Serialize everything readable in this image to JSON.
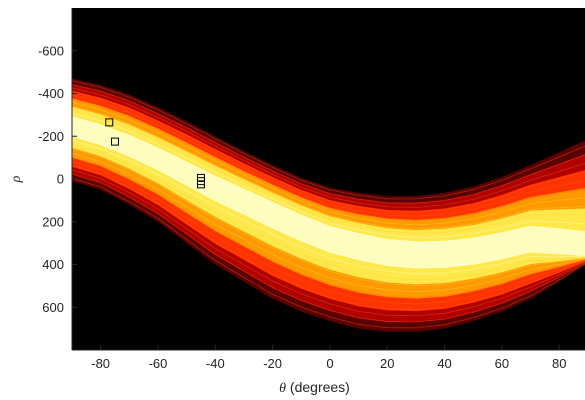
{
  "chart_data": {
    "type": "heatmap",
    "title": "",
    "xlabel_symbol": "θ",
    "xlabel_unit": " (degrees)",
    "ylabel": "ρ",
    "xlim": [
      -90,
      89
    ],
    "ylim": [
      -800,
      800
    ],
    "y_reversed": true,
    "xticks": [
      -80,
      -60,
      -40,
      -20,
      0,
      20,
      40,
      60,
      80
    ],
    "yticks": [
      -600,
      -400,
      -200,
      0,
      200,
      400,
      600
    ],
    "colormap": [
      "#000000",
      "#5a0000",
      "#b00000",
      "#ff3300",
      "#ff9900",
      "#ffe84a",
      "#ffffc8"
    ],
    "background": "#000000",
    "band": {
      "description_points_theta": [
        -90,
        -80,
        -70,
        -60,
        -50,
        -40,
        -30,
        -20,
        -10,
        0,
        10,
        20,
        30,
        40,
        50,
        60,
        70,
        80,
        89
      ],
      "upper_edge_rho": [
        -470,
        -440,
        -395,
        -335,
        -270,
        -200,
        -130,
        -65,
        -5,
        40,
        65,
        80,
        80,
        65,
        35,
        -10,
        -65,
        -125,
        -180
      ],
      "lower_edge_rho": [
        10,
        50,
        120,
        200,
        300,
        400,
        480,
        560,
        620,
        665,
        700,
        715,
        715,
        700,
        665,
        620,
        560,
        480,
        400
      ],
      "bright_core_rho": [
        -250,
        -210,
        -160,
        -100,
        -35,
        30,
        90,
        150,
        210,
        265,
        300,
        330,
        345,
        345,
        335,
        315,
        290,
        320,
        350
      ]
    },
    "peaks": [
      {
        "theta": -77,
        "rho": -265
      },
      {
        "theta": -75,
        "rho": -175
      },
      {
        "theta": -45,
        "rho": 10
      },
      {
        "theta": -45,
        "rho": -5
      },
      {
        "theta": -45,
        "rho": 25
      }
    ],
    "peak_marker": "square"
  }
}
